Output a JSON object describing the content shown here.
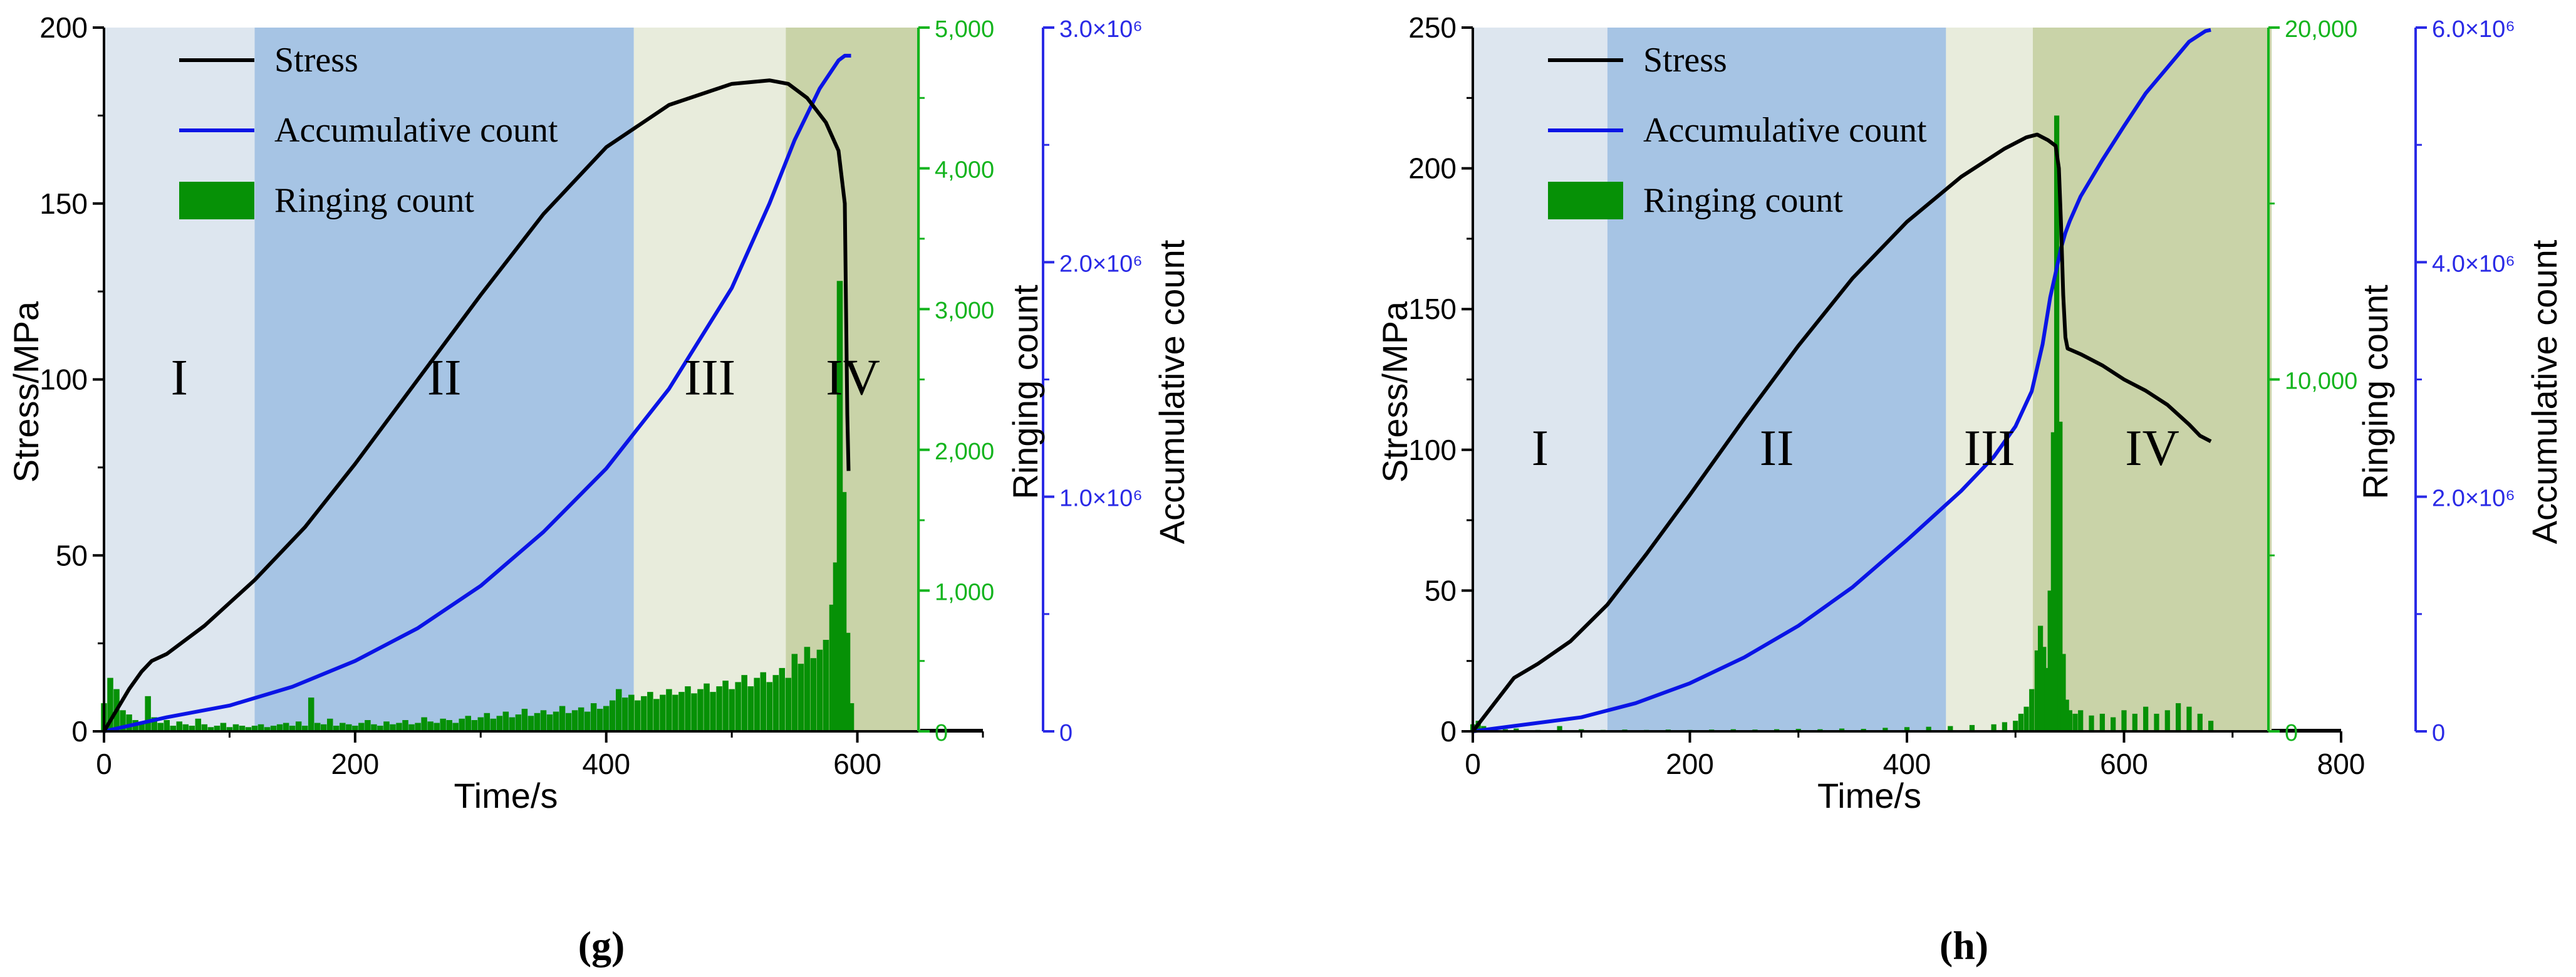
{
  "colors": {
    "stress": "#000000",
    "accumulative": "#0a14e6",
    "ringing": "#069106",
    "ringing_axis": "#14b41e",
    "accum_axis": "#2a2ae6",
    "stage1": "#dde6ef",
    "stage2": "#a6c4e4",
    "stage3": "#e8ecdc",
    "stage4": "#c9d3a8"
  },
  "chart_data": [
    {
      "id": "g",
      "type": "line",
      "panel_label": "(g)",
      "xlabel": "Time/s",
      "ylabel_left": "Stress/MPa",
      "ylabel_right1": "Ringing count",
      "ylabel_right2": "Accumulative count",
      "xlim": [
        0,
        700
      ],
      "xaxis_end": 650,
      "ylim": [
        0,
        200
      ],
      "y2lim": [
        0,
        5000
      ],
      "y3lim": [
        0,
        3000000
      ],
      "xticks": [
        0,
        200,
        400,
        600
      ],
      "xtick_labels": [
        "0",
        "200",
        "400",
        "600"
      ],
      "yticks": [
        0,
        50,
        100,
        150,
        200
      ],
      "ytick_labels": [
        "0",
        "50",
        "100",
        "150",
        "200"
      ],
      "y2ticks": [
        0,
        1000,
        2000,
        3000,
        4000,
        5000
      ],
      "y2tick_labels": [
        "0",
        "1,000",
        "2,000",
        "3,000",
        "4,000",
        "5,000"
      ],
      "y3ticks": [
        0,
        1000000,
        2000000,
        3000000
      ],
      "y3tick_labels": [
        "0",
        "1.0×10⁶",
        "2.0×10⁶",
        "3.0×10⁶"
      ],
      "legend": [
        "Stress",
        "Accumulative count",
        "Ringing count"
      ],
      "stages": [
        {
          "label": "I",
          "start": 0,
          "end": 120
        },
        {
          "label": "II",
          "start": 120,
          "end": 422
        },
        {
          "label": "III",
          "start": 422,
          "end": 543
        },
        {
          "label": "IV",
          "start": 543,
          "end": 650
        }
      ],
      "stage_label_y": 100,
      "series": [
        {
          "name": "Stress",
          "axis": "left",
          "x": [
            0,
            10,
            20,
            30,
            38,
            50,
            80,
            120,
            160,
            200,
            250,
            300,
            350,
            400,
            450,
            500,
            530,
            545,
            560,
            575,
            585,
            590,
            591,
            592,
            593
          ],
          "y": [
            0,
            6,
            12,
            17,
            20,
            22,
            30,
            43,
            58,
            76,
            100,
            124,
            147,
            166,
            178,
            184,
            185,
            184,
            180,
            173,
            165,
            150,
            120,
            90,
            74
          ]
        },
        {
          "name": "Accumulative count",
          "axis": "right2",
          "x": [
            0,
            50,
            100,
            150,
            200,
            250,
            300,
            350,
            400,
            450,
            500,
            530,
            550,
            570,
            585,
            590,
            595
          ],
          "y": [
            0,
            60000,
            110000,
            190000,
            300000,
            440000,
            620000,
            850000,
            1120000,
            1460000,
            1890000,
            2250000,
            2520000,
            2740000,
            2860000,
            2880000,
            2880000
          ]
        },
        {
          "name": "Ringing count",
          "axis": "right1",
          "x": [
            0,
            5,
            10,
            15,
            20,
            25,
            30,
            35,
            40,
            45,
            50,
            55,
            60,
            65,
            70,
            75,
            80,
            85,
            90,
            95,
            100,
            105,
            110,
            115,
            120,
            125,
            130,
            135,
            140,
            145,
            150,
            155,
            160,
            165,
            170,
            175,
            180,
            185,
            190,
            195,
            200,
            205,
            210,
            215,
            220,
            225,
            230,
            235,
            240,
            245,
            250,
            255,
            260,
            265,
            270,
            275,
            280,
            285,
            290,
            295,
            300,
            305,
            310,
            315,
            320,
            325,
            330,
            335,
            340,
            345,
            350,
            355,
            360,
            365,
            370,
            375,
            380,
            385,
            390,
            395,
            400,
            405,
            410,
            415,
            420,
            425,
            430,
            435,
            440,
            445,
            450,
            455,
            460,
            465,
            470,
            475,
            480,
            485,
            490,
            495,
            500,
            505,
            510,
            515,
            520,
            525,
            530,
            535,
            540,
            545,
            550,
            555,
            560,
            565,
            570,
            575,
            580,
            583,
            586,
            589,
            592,
            595
          ],
          "y": [
            200,
            380,
            300,
            150,
            120,
            80,
            60,
            250,
            100,
            60,
            80,
            40,
            70,
            50,
            40,
            90,
            50,
            30,
            40,
            60,
            30,
            50,
            40,
            30,
            40,
            50,
            30,
            40,
            50,
            60,
            40,
            70,
            40,
            240,
            60,
            50,
            90,
            40,
            60,
            50,
            40,
            60,
            80,
            50,
            40,
            70,
            50,
            60,
            80,
            50,
            60,
            100,
            70,
            60,
            90,
            80,
            60,
            90,
            110,
            80,
            100,
            130,
            90,
            110,
            140,
            100,
            120,
            160,
            110,
            130,
            150,
            120,
            140,
            180,
            130,
            150,
            170,
            140,
            200,
            160,
            180,
            220,
            300,
            240,
            260,
            220,
            250,
            280,
            230,
            260,
            300,
            260,
            280,
            320,
            270,
            300,
            340,
            280,
            320,
            360,
            300,
            350,
            400,
            320,
            380,
            420,
            350,
            400,
            450,
            380,
            550,
            480,
            600,
            520,
            580,
            650,
            900,
            1200,
            3200,
            1700,
            700,
            200
          ]
        }
      ]
    },
    {
      "id": "h",
      "type": "line",
      "panel_label": "(h)",
      "xlabel": "Time/s",
      "ylabel_left": "Stress/MPa",
      "ylabel_right1": "Ringing count",
      "ylabel_right2": "Accumulative count",
      "xlim": [
        0,
        800
      ],
      "xaxis_end": 736,
      "ylim": [
        0,
        250
      ],
      "y2lim": [
        0,
        20000
      ],
      "y3lim": [
        0,
        6000000
      ],
      "xticks": [
        0,
        200,
        400,
        600,
        800
      ],
      "xtick_labels": [
        "0",
        "200",
        "400",
        "600",
        "800"
      ],
      "yticks": [
        0,
        50,
        100,
        150,
        200,
        250
      ],
      "ytick_labels": [
        "0",
        "50",
        "100",
        "150",
        "200",
        "250"
      ],
      "y2ticks": [
        0,
        10000,
        20000
      ],
      "y2tick_labels": [
        "0",
        "10,000",
        "20,000"
      ],
      "y3ticks": [
        0,
        2000000,
        4000000,
        6000000
      ],
      "y3tick_labels": [
        "0",
        "2.0×10⁶",
        "4.0×10⁶",
        "6.0×10⁶"
      ],
      "legend": [
        "Stress",
        "Accumulative count",
        "Ringing count"
      ],
      "stages": [
        {
          "label": "I",
          "start": 0,
          "end": 124
        },
        {
          "label": "II",
          "start": 124,
          "end": 436
        },
        {
          "label": "III",
          "start": 436,
          "end": 516
        },
        {
          "label": "IV",
          "start": 516,
          "end": 736
        }
      ],
      "stage_label_y": 100,
      "series": [
        {
          "name": "Stress",
          "axis": "left",
          "x": [
            0,
            20,
            38,
            60,
            90,
            124,
            160,
            200,
            250,
            300,
            350,
            400,
            450,
            490,
            510,
            520,
            530,
            537,
            540,
            542,
            544,
            546,
            548,
            560,
            580,
            600,
            620,
            640,
            660,
            670,
            680
          ],
          "y": [
            0,
            10,
            19,
            24,
            32,
            45,
            63,
            84,
            111,
            137,
            161,
            181,
            197,
            207,
            211,
            212,
            210,
            208,
            200,
            180,
            155,
            140,
            136,
            134,
            130,
            125,
            121,
            116,
            109,
            105,
            103
          ]
        },
        {
          "name": "Accumulative count",
          "axis": "right2",
          "x": [
            0,
            50,
            100,
            150,
            200,
            250,
            300,
            350,
            400,
            450,
            480,
            500,
            515,
            525,
            532,
            538,
            542,
            546,
            550,
            560,
            580,
            600,
            620,
            640,
            660,
            675,
            680
          ],
          "y": [
            0,
            60000,
            120000,
            240000,
            410000,
            630000,
            900000,
            1230000,
            1630000,
            2050000,
            2340000,
            2600000,
            2900000,
            3300000,
            3700000,
            3950000,
            4120000,
            4250000,
            4350000,
            4560000,
            4870000,
            5160000,
            5440000,
            5660000,
            5880000,
            5970000,
            5980000
          ]
        },
        {
          "name": "Ringing count",
          "axis": "right1",
          "x": [
            0,
            5,
            10,
            20,
            30,
            40,
            60,
            80,
            100,
            120,
            140,
            160,
            180,
            200,
            220,
            240,
            260,
            280,
            300,
            320,
            340,
            360,
            380,
            400,
            420,
            440,
            460,
            480,
            490,
            500,
            505,
            510,
            515,
            520,
            523,
            526,
            529,
            532,
            535,
            538,
            541,
            544,
            547,
            550,
            555,
            560,
            570,
            580,
            590,
            600,
            610,
            620,
            630,
            640,
            650,
            660,
            670,
            680
          ],
          "y": [
            200,
            300,
            150,
            80,
            60,
            80,
            40,
            150,
            60,
            40,
            50,
            40,
            50,
            40,
            50,
            60,
            50,
            60,
            70,
            60,
            80,
            70,
            100,
            120,
            130,
            150,
            180,
            200,
            260,
            300,
            500,
            700,
            1200,
            2300,
            3000,
            2400,
            1800,
            4000,
            8500,
            17500,
            8800,
            2200,
            900,
            600,
            500,
            600,
            450,
            500,
            400,
            600,
            500,
            700,
            500,
            600,
            800,
            700,
            500,
            300
          ]
        }
      ]
    }
  ]
}
